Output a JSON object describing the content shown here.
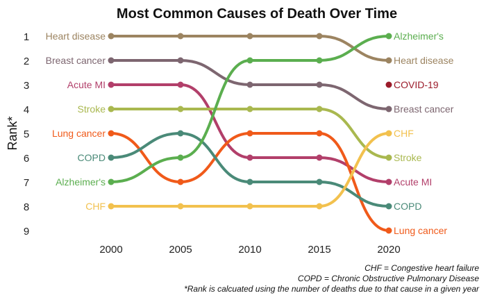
{
  "chart_data": {
    "type": "line",
    "title": "Most Common Causes of Death Over Time",
    "xlabel": "",
    "ylabel": "Rank*",
    "x": [
      2000,
      2005,
      2010,
      2015,
      2020
    ],
    "xticks": [
      "2000",
      "2005",
      "2010",
      "2015",
      "2020"
    ],
    "yticks": [
      "1",
      "2",
      "3",
      "4",
      "5",
      "6",
      "7",
      "8",
      "9"
    ],
    "ylim": [
      9,
      1
    ],
    "series": [
      {
        "name": "Heart disease",
        "color": "#9C8461",
        "points": [
          [
            2000,
            1
          ],
          [
            2005,
            1
          ],
          [
            2010,
            1
          ],
          [
            2015,
            1
          ],
          [
            2020,
            2
          ]
        ]
      },
      {
        "name": "Breast cancer",
        "color": "#7D6670",
        "points": [
          [
            2000,
            2
          ],
          [
            2005,
            2
          ],
          [
            2010,
            3
          ],
          [
            2015,
            3
          ],
          [
            2020,
            4
          ]
        ]
      },
      {
        "name": "Acute MI",
        "color": "#B23F6A",
        "points": [
          [
            2000,
            3
          ],
          [
            2005,
            3
          ],
          [
            2010,
            6
          ],
          [
            2015,
            6
          ],
          [
            2020,
            7
          ]
        ]
      },
      {
        "name": "Stroke",
        "color": "#A9B84F",
        "points": [
          [
            2000,
            4
          ],
          [
            2005,
            4
          ],
          [
            2010,
            4
          ],
          [
            2015,
            4
          ],
          [
            2020,
            6
          ]
        ]
      },
      {
        "name": "Lung cancer",
        "color": "#F05A1A",
        "points": [
          [
            2000,
            5
          ],
          [
            2005,
            7
          ],
          [
            2010,
            5
          ],
          [
            2015,
            5
          ],
          [
            2020,
            9
          ]
        ]
      },
      {
        "name": "COPD",
        "color": "#4A8A78",
        "points": [
          [
            2000,
            6
          ],
          [
            2005,
            5
          ],
          [
            2010,
            7
          ],
          [
            2015,
            7
          ],
          [
            2020,
            8
          ]
        ]
      },
      {
        "name": "Alzheimer's",
        "color": "#5BAE4F",
        "points": [
          [
            2000,
            7
          ],
          [
            2005,
            6
          ],
          [
            2010,
            2
          ],
          [
            2015,
            2
          ],
          [
            2020,
            1
          ]
        ]
      },
      {
        "name": "CHF",
        "color": "#F2C14E",
        "points": [
          [
            2000,
            8
          ],
          [
            2005,
            8
          ],
          [
            2010,
            8
          ],
          [
            2015,
            8
          ],
          [
            2020,
            5
          ]
        ]
      },
      {
        "name": "COVID-19",
        "color": "#9B1B2A",
        "points": [
          [
            2020,
            3
          ]
        ]
      }
    ],
    "footnotes": [
      "CHF = Congestive heart failure",
      "COPD = Chronic Obstructive Pulmonary Disease",
      "*Rank is calcuated using the number of deaths due to that cause in a given year"
    ],
    "grid": false,
    "legend": "direct-labels"
  }
}
